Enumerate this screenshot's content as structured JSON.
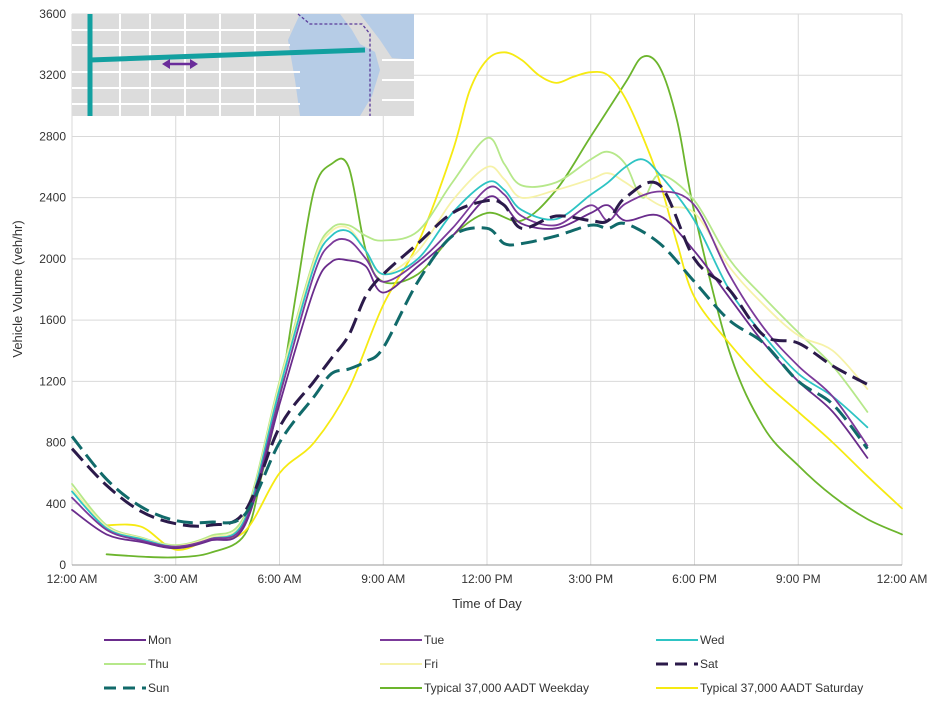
{
  "chart_data": {
    "type": "line",
    "xlabel": "Time of Day",
    "ylabel": "Vehicle Volume (veh/hr)",
    "xlim": [
      0,
      24
    ],
    "ylim": [
      0,
      3600
    ],
    "grid": true,
    "legend_position": "bottom",
    "x_ticks": [
      {
        "value": 0,
        "label": "12:00 AM"
      },
      {
        "value": 3,
        "label": "3:00 AM"
      },
      {
        "value": 6,
        "label": "6:00 AM"
      },
      {
        "value": 9,
        "label": "9:00 AM"
      },
      {
        "value": 12,
        "label": "12:00 PM"
      },
      {
        "value": 15,
        "label": "3:00 PM"
      },
      {
        "value": 18,
        "label": "6:00 PM"
      },
      {
        "value": 21,
        "label": "9:00 PM"
      },
      {
        "value": 24,
        "label": "12:00 AM"
      }
    ],
    "y_ticks": [
      {
        "value": 0,
        "label": "0"
      },
      {
        "value": 400,
        "label": "400"
      },
      {
        "value": 800,
        "label": "800"
      },
      {
        "value": 1200,
        "label": "1200"
      },
      {
        "value": 1600,
        "label": "1600"
      },
      {
        "value": 2000,
        "label": "2000"
      },
      {
        "value": 2400,
        "label": "2400"
      },
      {
        "value": 2800,
        "label": "2800"
      },
      {
        "value": 3200,
        "label": "3200"
      },
      {
        "value": 3600,
        "label": "3600"
      }
    ],
    "series": [
      {
        "name": "Mon",
        "color": "#6a2c8c",
        "dash": "solid",
        "x": [
          0,
          1,
          2,
          3,
          4,
          5,
          6,
          7,
          7.5,
          8,
          8.5,
          9,
          10,
          11,
          12,
          12.5,
          13,
          14,
          15,
          15.5,
          16,
          17,
          18,
          19,
          20,
          21,
          22,
          23
        ],
        "y": [
          360,
          200,
          150,
          110,
          160,
          260,
          1050,
          1800,
          1980,
          1990,
          1950,
          1780,
          1950,
          2150,
          2400,
          2350,
          2230,
          2200,
          2300,
          2350,
          2250,
          2280,
          2050,
          1750,
          1450,
          1200,
          1000,
          700
        ]
      },
      {
        "name": "Tue",
        "color": "#7b3a9a",
        "dash": "solid",
        "x": [
          0,
          1,
          2,
          3,
          4,
          5,
          6,
          7,
          7.5,
          8,
          8.5,
          9,
          10,
          11,
          12,
          12.5,
          13,
          14,
          15,
          15.5,
          16,
          17,
          18,
          19,
          20,
          21,
          22,
          23
        ],
        "y": [
          440,
          230,
          160,
          120,
          170,
          280,
          1100,
          1900,
          2100,
          2120,
          2000,
          1850,
          1980,
          2200,
          2460,
          2420,
          2280,
          2220,
          2350,
          2250,
          2360,
          2440,
          2350,
          1900,
          1550,
          1300,
          1100,
          780
        ]
      },
      {
        "name": "Wed",
        "color": "#2ec4c4",
        "dash": "solid",
        "x": [
          0,
          1,
          2,
          3,
          4,
          5,
          6,
          7,
          7.5,
          8,
          8.5,
          9,
          10,
          11,
          12,
          12.5,
          13,
          14,
          15,
          15.5,
          16,
          16.5,
          17,
          18,
          19,
          20,
          21,
          22,
          23
        ],
        "y": [
          480,
          240,
          170,
          120,
          170,
          300,
          1150,
          1950,
          2150,
          2180,
          2050,
          1900,
          2000,
          2300,
          2500,
          2450,
          2320,
          2260,
          2420,
          2500,
          2600,
          2650,
          2550,
          2250,
          1800,
          1500,
          1250,
          1100,
          900
        ]
      },
      {
        "name": "Thu",
        "color": "#b6e88a",
        "dash": "solid",
        "x": [
          0,
          1,
          2,
          3,
          4,
          5,
          6,
          7,
          7.5,
          8,
          8.5,
          9,
          10,
          11,
          12,
          12.5,
          13,
          14,
          15,
          15.5,
          16,
          16.5,
          17,
          18,
          19,
          20,
          21,
          22,
          23
        ],
        "y": [
          530,
          260,
          180,
          130,
          190,
          330,
          1200,
          2000,
          2200,
          2220,
          2150,
          2120,
          2180,
          2500,
          2790,
          2620,
          2480,
          2500,
          2650,
          2700,
          2620,
          2400,
          2550,
          2380,
          2000,
          1750,
          1520,
          1300,
          1000
        ]
      },
      {
        "name": "Fri",
        "color": "#f6f2a8",
        "dash": "solid",
        "x": [
          0,
          1,
          2,
          3,
          4,
          5,
          6,
          7,
          7.5,
          8,
          8.5,
          9,
          10,
          11,
          12,
          12.5,
          13,
          14,
          15,
          15.5,
          16,
          17,
          18,
          19,
          20,
          21,
          22,
          23
        ],
        "y": [
          500,
          250,
          175,
          125,
          180,
          310,
          1180,
          1980,
          2180,
          2200,
          2050,
          1900,
          2050,
          2380,
          2600,
          2520,
          2400,
          2450,
          2520,
          2560,
          2500,
          2350,
          2300,
          1950,
          1700,
          1500,
          1400,
          1150
        ]
      },
      {
        "name": "Sat",
        "color": "#2b1a4a",
        "dash": "dashed",
        "x": [
          0,
          1,
          2,
          3,
          4,
          5,
          6,
          7,
          7.5,
          8,
          8.5,
          9,
          10,
          11,
          12,
          12.5,
          13,
          14,
          15,
          15.5,
          16,
          17,
          18,
          19,
          20,
          21,
          22,
          23
        ],
        "y": [
          760,
          520,
          350,
          270,
          260,
          350,
          900,
          1200,
          1350,
          1500,
          1760,
          1900,
          2100,
          2300,
          2380,
          2350,
          2200,
          2280,
          2250,
          2250,
          2400,
          2480,
          2000,
          1800,
          1500,
          1450,
          1300,
          1180
        ]
      },
      {
        "name": "Sun",
        "color": "#116a6a",
        "dash": "dashed",
        "x": [
          0,
          1,
          2,
          3,
          4,
          5,
          6,
          7,
          7.5,
          8,
          8.5,
          9,
          10,
          11,
          12,
          12.5,
          13,
          14,
          15,
          15.5,
          16,
          17,
          18,
          19,
          20,
          21,
          22,
          23
        ],
        "y": [
          840,
          560,
          380,
          290,
          280,
          330,
          800,
          1100,
          1250,
          1280,
          1330,
          1420,
          1850,
          2150,
          2200,
          2100,
          2100,
          2150,
          2220,
          2200,
          2230,
          2100,
          1850,
          1600,
          1450,
          1200,
          1050,
          760
        ]
      },
      {
        "name": "Typical 37,000 AADT Weekday",
        "color": "#6cb52d",
        "dash": "solid",
        "x": [
          1,
          2,
          3,
          4,
          5,
          5.5,
          6,
          6.5,
          7,
          7.5,
          8,
          8.5,
          9,
          10,
          11,
          12,
          13,
          14,
          15,
          16,
          16.5,
          17,
          17.5,
          18,
          19,
          20,
          21,
          22,
          23,
          24
        ],
        "y": [
          70,
          55,
          50,
          80,
          200,
          600,
          1100,
          1800,
          2450,
          2620,
          2600,
          2050,
          1850,
          1900,
          2150,
          2300,
          2250,
          2450,
          2800,
          3150,
          3320,
          3250,
          2900,
          2300,
          1400,
          900,
          650,
          450,
          300,
          200
        ]
      },
      {
        "name": "Typical 37,000 AADT Saturday",
        "color": "#f6ea12",
        "dash": "solid",
        "x": [
          1,
          2,
          3,
          4,
          5,
          6,
          7,
          8,
          9,
          10,
          11,
          11.5,
          12,
          12.5,
          13,
          13.5,
          14,
          14.5,
          15,
          15.5,
          16,
          16.5,
          17,
          17.5,
          18,
          19,
          20,
          21,
          22,
          23,
          24
        ],
        "y": [
          260,
          250,
          100,
          170,
          220,
          600,
          800,
          1150,
          1700,
          2100,
          2700,
          3100,
          3300,
          3350,
          3300,
          3200,
          3150,
          3190,
          3220,
          3200,
          3050,
          2800,
          2500,
          2100,
          1750,
          1450,
          1200,
          1000,
          800,
          580,
          370
        ]
      }
    ]
  }
}
